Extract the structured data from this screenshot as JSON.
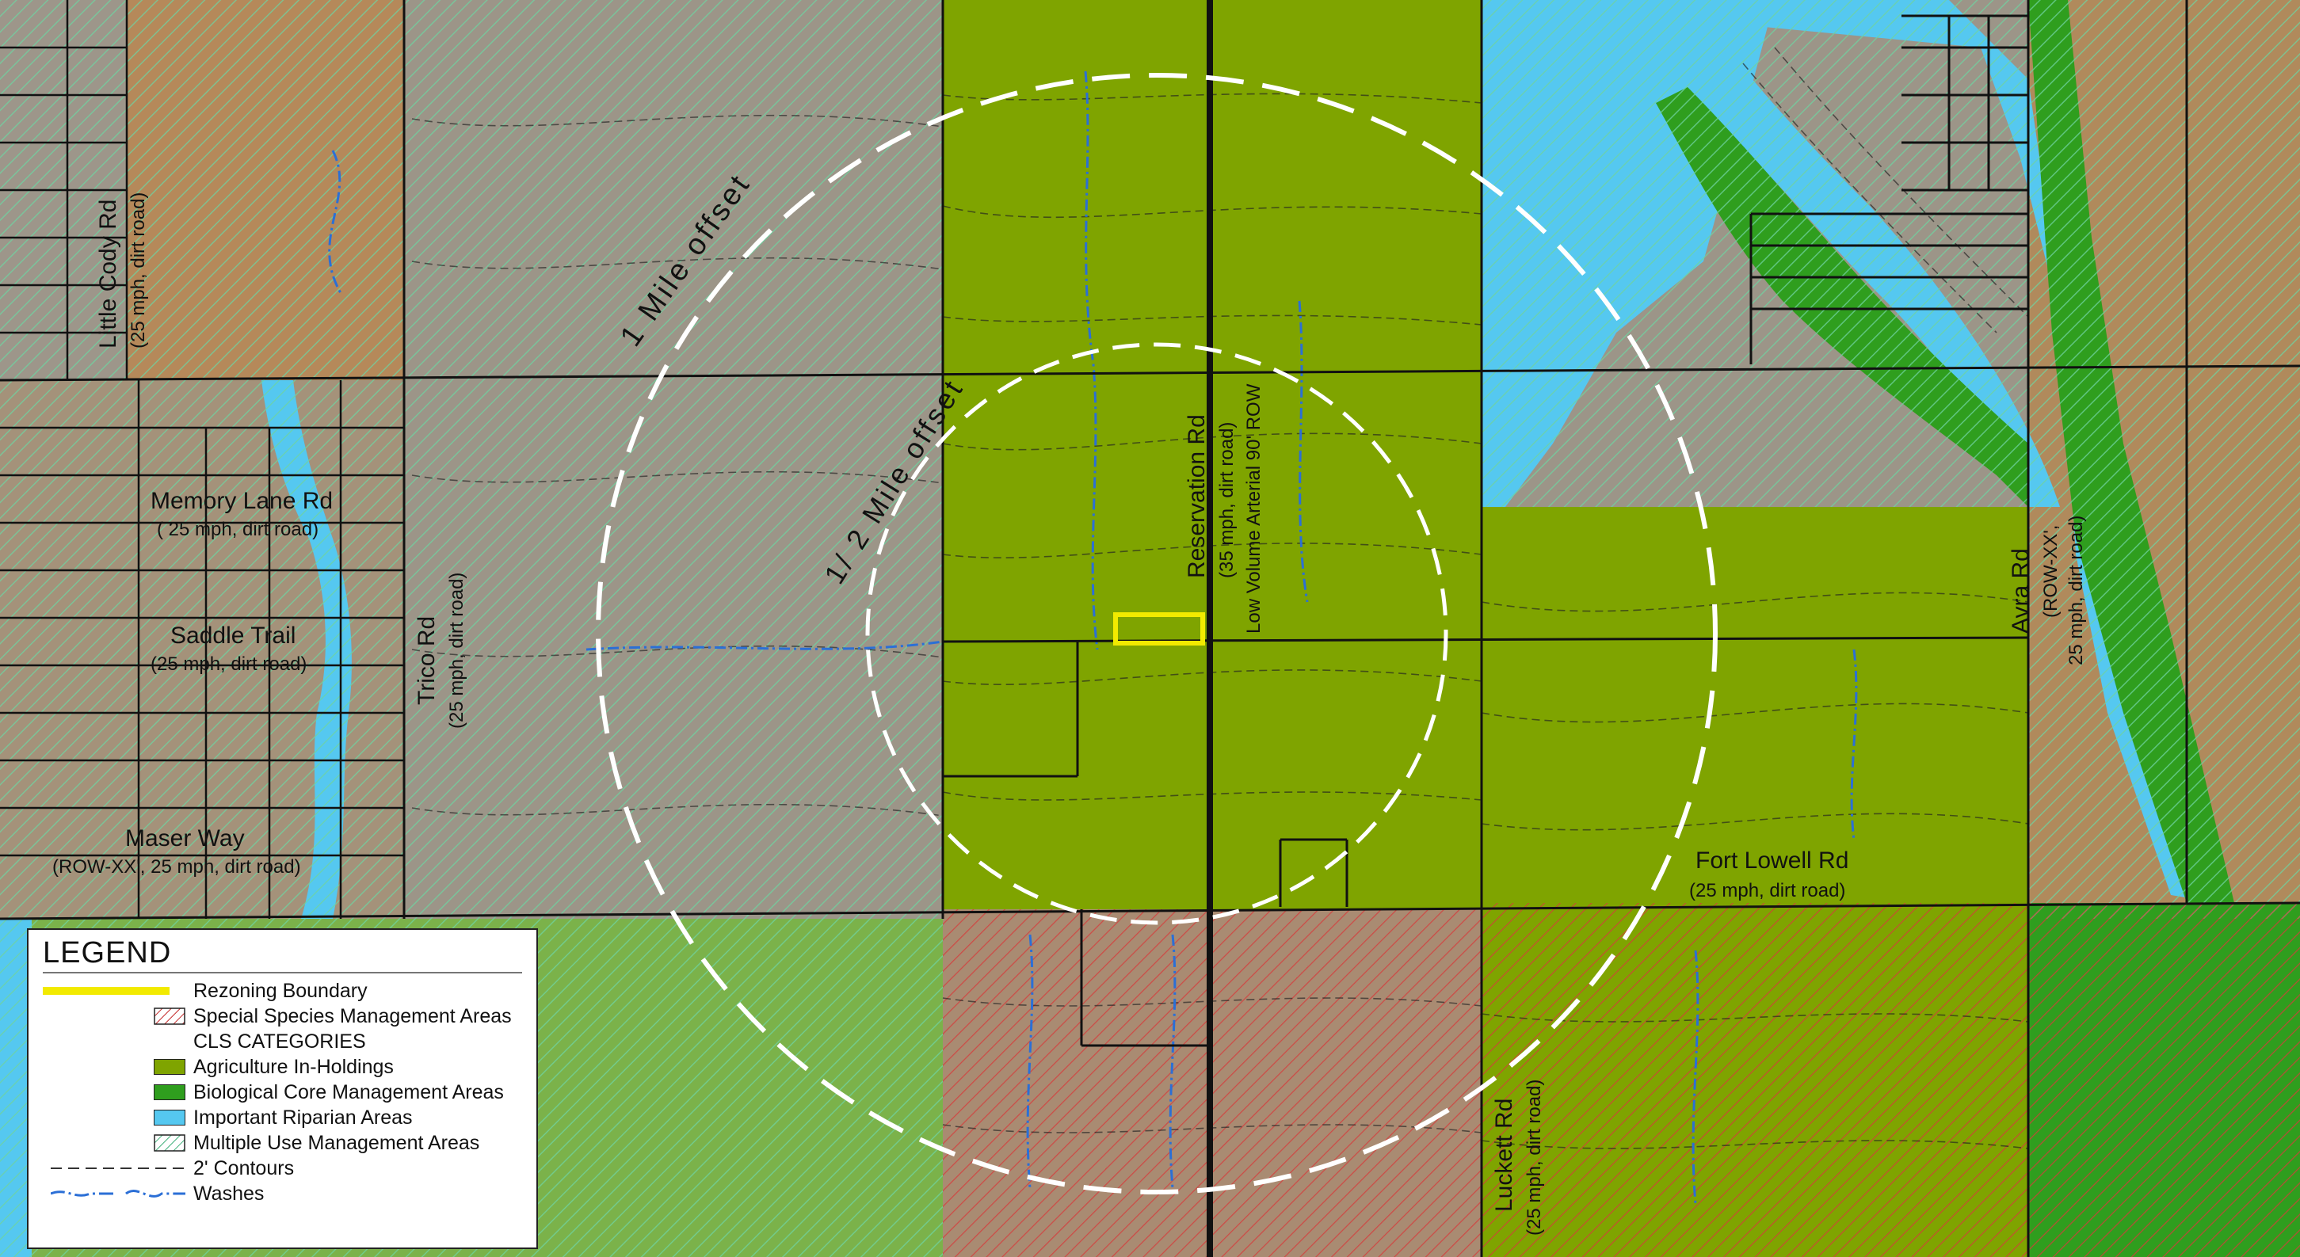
{
  "legend": {
    "title": "LEGEND",
    "items": [
      {
        "label": "Rezoning Boundary",
        "symbol": "yellow-line",
        "color": "#F2EA00"
      },
      {
        "label": "Special Species Management Areas",
        "symbol": "red-hatch",
        "color": "#D23A3A"
      },
      {
        "label": "CLS CATEGORIES",
        "symbol": "heading"
      },
      {
        "label": "Agriculture In-Holdings",
        "symbol": "fill",
        "color": "#7FA400"
      },
      {
        "label": "Biological Core Management Areas",
        "symbol": "fill",
        "color": "#2F9E1E"
      },
      {
        "label": "Important Riparian Areas",
        "symbol": "fill",
        "color": "#55C8F0"
      },
      {
        "label": "Multiple Use Management Areas",
        "symbol": "green-hatch",
        "color": "#5FC79A"
      },
      {
        "label": "2' Contours",
        "symbol": "dashed-line",
        "color": "#333333"
      },
      {
        "label": "Washes",
        "symbol": "dash-dot-line",
        "color": "#2B6FD6"
      }
    ]
  },
  "offsets": {
    "one_mile": "1 Mile offset",
    "half_mile": "1/ 2 Mile offset"
  },
  "roads": {
    "little_cody": {
      "name": "Little Cody Rd",
      "detail": "(25 mph, dirt road)"
    },
    "memory_lane": {
      "name": "Memory Lane Rd",
      "detail": "( 25 mph, dirt road)"
    },
    "saddle_trail": {
      "name": "Saddle Trail",
      "detail": "(25 mph, dirt road)"
    },
    "maser_way": {
      "name": "Maser Way",
      "detail": "(ROW-XX', 25 mph, dirt road)"
    },
    "trico": {
      "name": "Trico Rd",
      "detail": "(25 mph, dirt road)"
    },
    "reservation": {
      "name": "Reservation Rd",
      "detail": "(35 mph, dirt road)",
      "detail2": "Low Volume Arterial 90' ROW"
    },
    "fort_lowell": {
      "name": "Fort Lowell Rd",
      "detail": "(25 mph, dirt road)"
    },
    "luckett": {
      "name": "Luckett Rd",
      "detail": "(25 mph, dirt road)"
    },
    "avra": {
      "name": "Avra Rd",
      "detail": "(ROW-XX',",
      "detail2": "25 mph, dirt road)"
    }
  },
  "colors": {
    "brown_land": "#B08A5C",
    "gray_land": "#9C9486",
    "agriculture": "#7FA400",
    "biological": "#2F9E1E",
    "riparian": "#55C8F0",
    "rezoning": "#F2EA00",
    "offset_circle": "#FFFFFF"
  }
}
